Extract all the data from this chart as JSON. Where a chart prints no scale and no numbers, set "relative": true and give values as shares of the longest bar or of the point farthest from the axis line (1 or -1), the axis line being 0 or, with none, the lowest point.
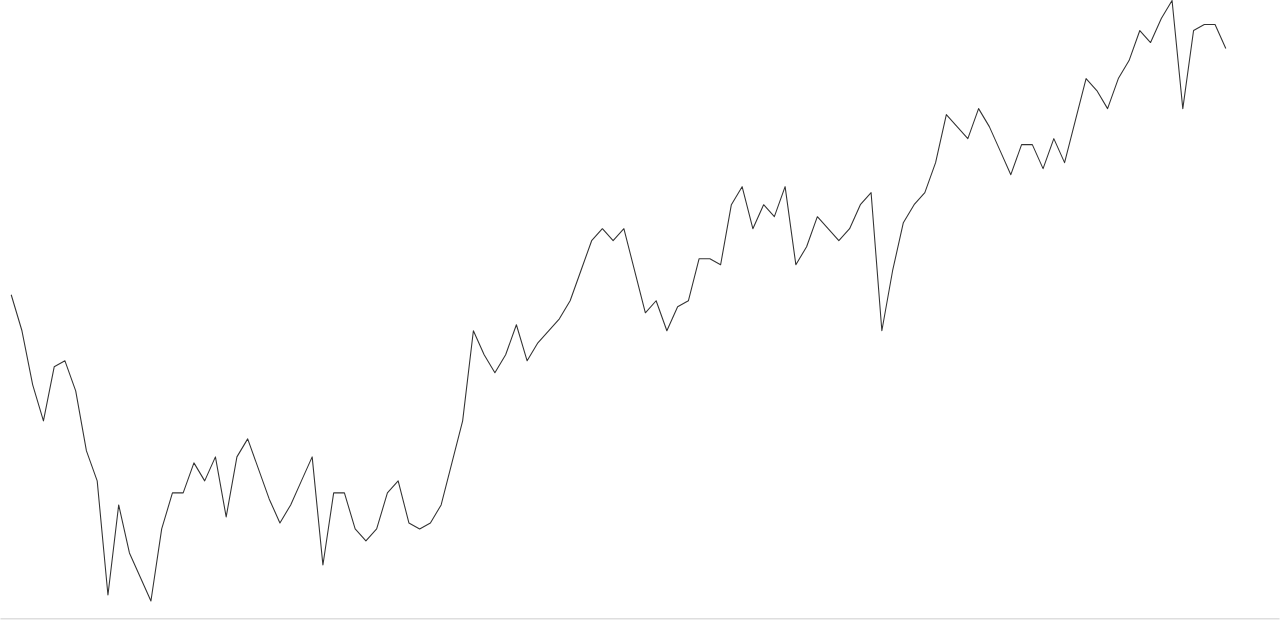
{
  "chart_data": {
    "type": "line",
    "relative": true,
    "color": "#333333",
    "categories": [
      null,
      null,
      null,
      null,
      null,
      null,
      null,
      null,
      null,
      null,
      null,
      null,
      null,
      null,
      null,
      null,
      null,
      null,
      null,
      null,
      null,
      null,
      null,
      null,
      null,
      null,
      null,
      null,
      null,
      null,
      null,
      null,
      null,
      null,
      null,
      null,
      null,
      null,
      null,
      null,
      null,
      null,
      null,
      null,
      null,
      null,
      null,
      null,
      null,
      null,
      null,
      null,
      null,
      null,
      null,
      null,
      null,
      null,
      null,
      null,
      null,
      null,
      null,
      null,
      null,
      null,
      null,
      null,
      null,
      null,
      null,
      null,
      null,
      null,
      null,
      null,
      null,
      null,
      null,
      null,
      null,
      null,
      null,
      null,
      null,
      null,
      null,
      null,
      null,
      null,
      null,
      null,
      null,
      null,
      null,
      null,
      null,
      null,
      null,
      null,
      null,
      null,
      null,
      null,
      null,
      null,
      null,
      null,
      null,
      null,
      null,
      null,
      null,
      null
    ],
    "values": [
      0.51,
      0.45,
      0.36,
      0.3,
      0.39,
      0.4,
      0.35,
      0.25,
      0.2,
      0.01,
      0.16,
      0.08,
      0.04,
      0.0,
      0.12,
      0.18,
      0.18,
      0.23,
      0.2,
      0.24,
      0.14,
      0.24,
      0.27,
      0.22,
      0.17,
      0.13,
      0.16,
      0.2,
      0.24,
      0.06,
      0.18,
      0.18,
      0.12,
      0.1,
      0.12,
      0.18,
      0.2,
      0.13,
      0.12,
      0.13,
      0.16,
      0.23,
      0.3,
      0.45,
      0.41,
      0.38,
      0.41,
      0.46,
      0.4,
      0.43,
      0.45,
      0.47,
      0.5,
      0.55,
      0.6,
      0.62,
      0.6,
      0.62,
      0.55,
      0.48,
      0.5,
      0.45,
      0.49,
      0.5,
      0.57,
      0.57,
      0.56,
      0.66,
      0.69,
      0.62,
      0.66,
      0.64,
      0.69,
      0.56,
      0.59,
      0.64,
      0.62,
      0.6,
      0.62,
      0.66,
      0.68,
      0.45,
      0.55,
      0.63,
      0.66,
      0.68,
      0.73,
      0.81,
      0.79,
      0.77,
      0.82,
      0.79,
      0.75,
      0.71,
      0.76,
      0.76,
      0.72,
      0.77,
      0.73,
      0.8,
      0.87,
      0.85,
      0.82,
      0.87,
      0.9,
      0.95,
      0.93,
      0.97,
      1.0,
      0.82,
      0.95,
      0.96,
      0.96,
      0.92
    ]
  }
}
